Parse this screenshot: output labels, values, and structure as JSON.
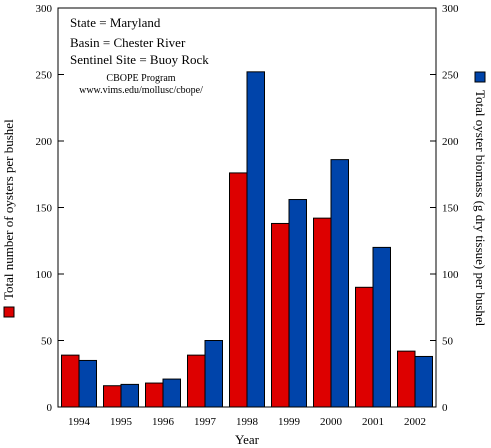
{
  "chart_data": {
    "type": "bar",
    "categories": [
      "1994",
      "1995",
      "1996",
      "1997",
      "1998",
      "1999",
      "2000",
      "2001",
      "2002"
    ],
    "series": [
      {
        "values": [
          39,
          16,
          18,
          39,
          176,
          138,
          142,
          90,
          42
        ],
        "color": "#dd0000",
        "axis": "left"
      },
      {
        "values": [
          35,
          17,
          21,
          50,
          252,
          156,
          186,
          120,
          38
        ],
        "color": "#0044aa",
        "axis": "right"
      }
    ],
    "xlabel": "Year",
    "ylabel": "Total number of oysters per bushel",
    "y2label": "Total oyster biomass (g dry tissue) per bushel",
    "ylim": [
      0,
      300
    ],
    "y2lim": [
      0,
      300
    ],
    "yticks": [
      "0",
      "50",
      "100",
      "150",
      "200",
      "250",
      "300"
    ],
    "y2ticks": [
      "0",
      "50",
      "100",
      "150",
      "200",
      "250",
      "300"
    ],
    "grid": false,
    "legend": "legend squares beside each y-axis title (red = left axis, blue = right axis)",
    "annotations": {
      "state": "State = Maryland",
      "basin": "Basin = Chester River",
      "site": "Sentinel Site = Buoy Rock",
      "program": "CBOPE Program",
      "url": "www.vims.edu/mollusc/cbope/"
    }
  }
}
